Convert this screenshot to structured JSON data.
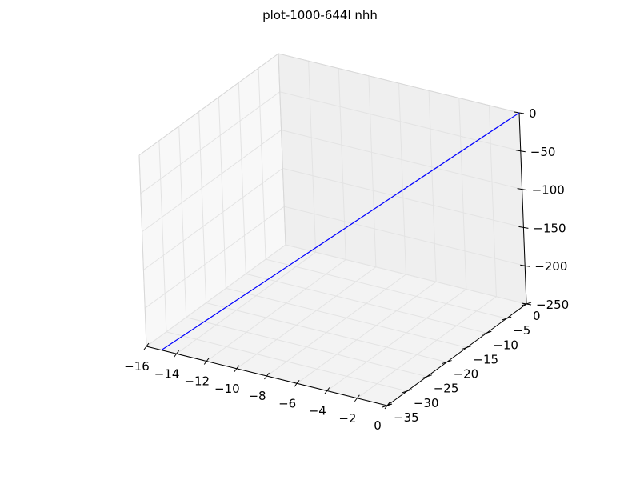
{
  "chart_data": {
    "type": "line",
    "title": "plot-1000-644l nhh",
    "xlabel": "",
    "ylabel": "",
    "zlabel": "",
    "projection": "3d",
    "xlim": [
      -16,
      0
    ],
    "ylim": [
      -35,
      0
    ],
    "zlim": [
      -250,
      0
    ],
    "x_ticks": [
      "−16",
      "−14",
      "−12",
      "−10",
      "−8",
      "−6",
      "−4",
      "−2",
      "0"
    ],
    "y_ticks": [
      "−35",
      "−30",
      "−25",
      "−20",
      "−15",
      "−10",
      "−5",
      "0"
    ],
    "z_ticks": [
      "−250",
      "−200",
      "−150",
      "−100",
      "−50",
      "0"
    ],
    "grid": true,
    "series": [
      {
        "color": "#0000ff",
        "x": [
          -15,
          0
        ],
        "y": [
          -35,
          0
        ],
        "z": [
          -250,
          0
        ]
      }
    ]
  }
}
